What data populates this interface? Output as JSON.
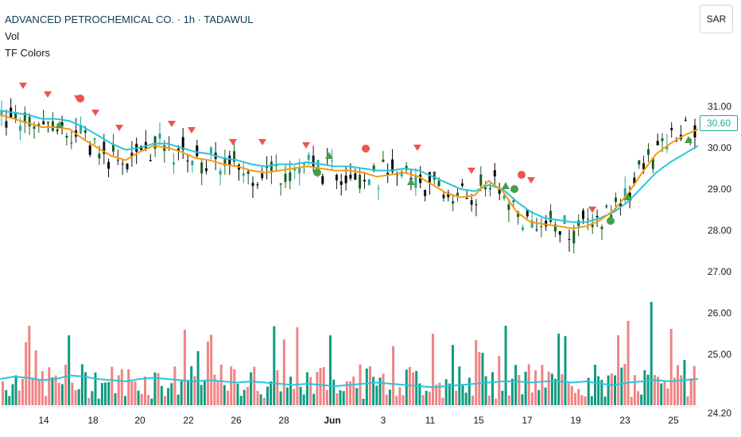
{
  "header": {
    "symbol_title": "ADVANCED PETROCHEMICAL CO. · 1h · TADAWUL",
    "indicator_vol": "Vol",
    "indicator_tf": "TF Colors",
    "currency_button": "SAR"
  },
  "last_price_label": "30.60",
  "colors": {
    "up": "#26a69a",
    "down": "#ef5350",
    "vol_up": "#0f9b80",
    "vol_down": "#f08484",
    "ema_fast": "#f39c12",
    "ema_slow": "#26c6da",
    "signal_up": "#43a047",
    "signal_down": "#ef5350"
  },
  "chart_data": {
    "type": "candlestick",
    "y_axis_ticks": [
      "31.00",
      "30.00",
      "29.00",
      "28.00",
      "27.00",
      "26.00",
      "25.00",
      "24.20"
    ],
    "ylim": [
      24.2,
      31.0
    ],
    "x_axis_ticks": [
      "14",
      "18",
      "20",
      "22",
      "26",
      "28",
      "Jun",
      "3",
      "11",
      "15",
      "17",
      "19",
      "23",
      "25"
    ],
    "series": [
      {
        "name": "EMA fast",
        "values": [
          30.8,
          30.7,
          30.6,
          30.5,
          30.5,
          30.45,
          30.2,
          30.0,
          29.8,
          29.7,
          29.9,
          30.05,
          30.0,
          29.9,
          29.75,
          29.7,
          29.6,
          29.55,
          29.45,
          29.4,
          29.45,
          29.5,
          29.55,
          29.5,
          29.45,
          29.45,
          29.4,
          29.3,
          29.35,
          29.4,
          29.3,
          29.1,
          28.9,
          28.8,
          28.85,
          29.2,
          28.95,
          28.45,
          28.2,
          28.15,
          28.1,
          28.05,
          28.1,
          28.25,
          28.5,
          28.9,
          29.4,
          29.85,
          30.1,
          30.3,
          30.45
        ]
      },
      {
        "name": "EMA slow",
        "values": [
          30.9,
          30.85,
          30.8,
          30.7,
          30.7,
          30.65,
          30.5,
          30.3,
          30.1,
          29.95,
          30.0,
          30.1,
          30.1,
          30.0,
          29.9,
          29.85,
          29.75,
          29.7,
          29.6,
          29.55,
          29.6,
          29.6,
          29.65,
          29.6,
          29.55,
          29.55,
          29.5,
          29.45,
          29.45,
          29.5,
          29.45,
          29.3,
          29.15,
          29.0,
          28.95,
          29.1,
          29.0,
          28.7,
          28.45,
          28.3,
          28.25,
          28.2,
          28.2,
          28.3,
          28.45,
          28.7,
          29.05,
          29.4,
          29.65,
          29.85,
          30.05
        ]
      },
      {
        "name": "Volume MA",
        "values": [
          0.22,
          0.24,
          0.23,
          0.21,
          0.22,
          0.25,
          0.24,
          0.22,
          0.21,
          0.2,
          0.22,
          0.23,
          0.22,
          0.21,
          0.2,
          0.21,
          0.2,
          0.19,
          0.2,
          0.19,
          0.18,
          0.17,
          0.18,
          0.17,
          0.16,
          0.17,
          0.18,
          0.19,
          0.18,
          0.17,
          0.16,
          0.15,
          0.16,
          0.17,
          0.18,
          0.19,
          0.2,
          0.2,
          0.19,
          0.2,
          0.2,
          0.19,
          0.2,
          0.18,
          0.17,
          0.19,
          0.2,
          0.21,
          0.2,
          0.21,
          0.22
        ]
      }
    ]
  }
}
